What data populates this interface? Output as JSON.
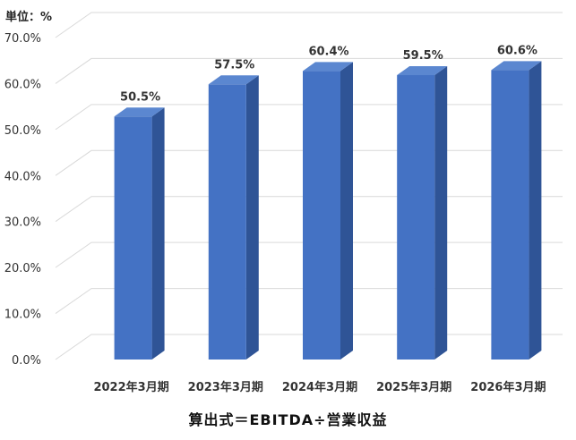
{
  "chart_data": {
    "type": "bar",
    "unit_label": "単位：%",
    "formula": "算出式＝EBITDA÷営業収益",
    "categories": [
      "2022年3月期",
      "2023年3月期",
      "2024年3月期",
      "2025年3月期",
      "2026年3月期"
    ],
    "values": [
      50.5,
      57.5,
      60.4,
      59.5,
      60.6
    ],
    "data_labels": [
      "50.5%",
      "57.5%",
      "60.4%",
      "59.5%",
      "60.6%"
    ],
    "ylim": [
      0,
      70
    ],
    "yticks": [
      "0.0%",
      "10.0%",
      "20.0%",
      "30.0%",
      "40.0%",
      "50.0%",
      "60.0%",
      "70.0%"
    ],
    "grid": true,
    "colors": {
      "bar_front": "#4472C4",
      "bar_side": "#2F5496",
      "bar_top": "#5B87D0",
      "grid": "#D9D9D9"
    }
  }
}
